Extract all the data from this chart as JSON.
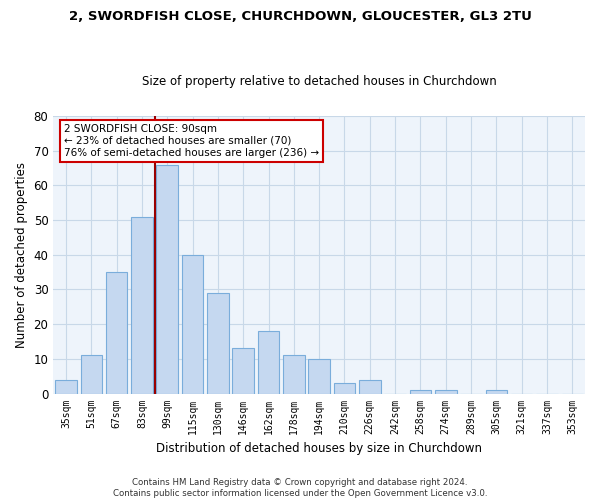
{
  "title1": "2, SWORDFISH CLOSE, CHURCHDOWN, GLOUCESTER, GL3 2TU",
  "title2": "Size of property relative to detached houses in Churchdown",
  "xlabel": "Distribution of detached houses by size in Churchdown",
  "ylabel": "Number of detached properties",
  "categories": [
    "35sqm",
    "51sqm",
    "67sqm",
    "83sqm",
    "99sqm",
    "115sqm",
    "130sqm",
    "146sqm",
    "162sqm",
    "178sqm",
    "194sqm",
    "210sqm",
    "226sqm",
    "242sqm",
    "258sqm",
    "274sqm",
    "289sqm",
    "305sqm",
    "321sqm",
    "337sqm",
    "353sqm"
  ],
  "values": [
    4,
    11,
    35,
    51,
    66,
    40,
    29,
    13,
    18,
    11,
    10,
    3,
    4,
    0,
    1,
    1,
    0,
    1,
    0,
    0,
    0
  ],
  "bar_color": "#c5d8f0",
  "bar_edge_color": "#7aaddb",
  "grid_color": "#c8d8e8",
  "background_color": "#eef4fb",
  "ref_line_color": "#990000",
  "annotation_text": "2 SWORDFISH CLOSE: 90sqm\n← 23% of detached houses are smaller (70)\n76% of semi-detached houses are larger (236) →",
  "annotation_box_color": "#ffffff",
  "annotation_box_edge": "#cc0000",
  "ylim": [
    0,
    80
  ],
  "yticks": [
    0,
    10,
    20,
    30,
    40,
    50,
    60,
    70,
    80
  ],
  "footnote": "Contains HM Land Registry data © Crown copyright and database right 2024.\nContains public sector information licensed under the Open Government Licence v3.0."
}
